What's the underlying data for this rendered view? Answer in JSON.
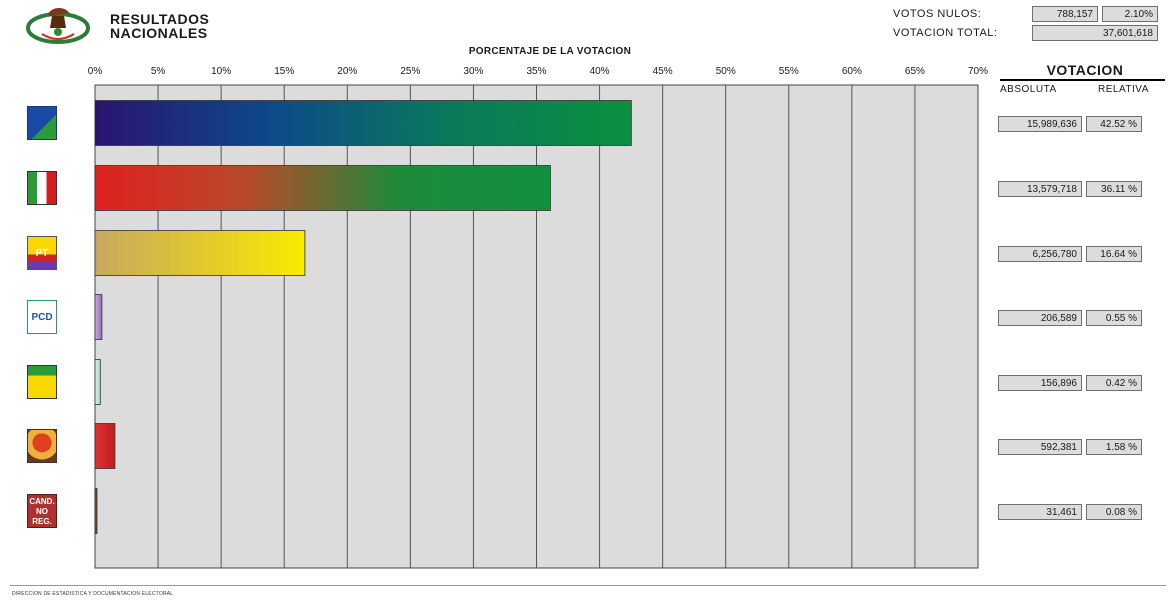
{
  "header": {
    "title_line1": "RESULTADOS",
    "title_line2": "NACIONALES",
    "chart_title": "PORCENTAJE DE LA VOTACION"
  },
  "summary": {
    "votos_nulos_label": "VOTOS NULOS:",
    "votos_nulos_abs": "788,157",
    "votos_nulos_rel": "2.10%",
    "votacion_total_label": "VOTACION TOTAL:",
    "votacion_total": "37,601,618"
  },
  "table": {
    "heading": "VOTACION",
    "col_absoluta": "ABSOLUTA",
    "col_relativa": "RELATIVA",
    "rows": [
      {
        "absoluta": "15,989,636",
        "relativa": "42.52 %"
      },
      {
        "absoluta": "13,579,718",
        "relativa": "36.11 %"
      },
      {
        "absoluta": "6,256,780",
        "relativa": "16.64 %"
      },
      {
        "absoluta": "206,589",
        "relativa": "0.55 %"
      },
      {
        "absoluta": "156,896",
        "relativa": "0.42 %"
      },
      {
        "absoluta": "592,381",
        "relativa": "1.58 %"
      },
      {
        "absoluta": "31,461",
        "relativa": "0.08 %"
      }
    ]
  },
  "logos": [
    {
      "icon": "pan-pvem-logo-icon",
      "text": ""
    },
    {
      "icon": "pri-logo-icon",
      "text": ""
    },
    {
      "icon": "prd-pt-alliance-logo-icon",
      "text": "PT"
    },
    {
      "icon": "pcd-logo-icon",
      "text": "PCD"
    },
    {
      "icon": "parm-logo-icon",
      "text": ""
    },
    {
      "icon": "dsppn-logo-icon",
      "text": ""
    },
    {
      "icon": "cand-no-reg-icon",
      "text": "CAND.\nNO\nREG."
    }
  ],
  "footer": "DIRECCION DE ESTADISTICA Y DOCUMENTACION ELECTORAL",
  "chart_data": {
    "type": "bar",
    "orientation": "horizontal",
    "title": "PORCENTAJE DE LA VOTACION",
    "xlim": [
      0,
      70
    ],
    "x_ticks": [
      "0%",
      "5%",
      "10%",
      "15%",
      "20%",
      "25%",
      "30%",
      "35%",
      "40%",
      "45%",
      "50%",
      "55%",
      "60%",
      "65%",
      "70%"
    ],
    "grid": true,
    "values": [
      42.52,
      36.11,
      16.64,
      0.55,
      0.42,
      1.58,
      0.08
    ],
    "bar_colors": [
      [
        "#2a1470",
        "#0c4a8a",
        "#0a7a5a",
        "#0a9040"
      ],
      [
        "#e02020",
        "#b84a2a",
        "#1e8a3a",
        "#109040"
      ],
      [
        "#c8a860",
        "#e0c830",
        "#f8ec00"
      ],
      [
        "#c8a8e0",
        "#9070b8"
      ],
      [
        "#d8f0e8",
        "#a8d8c8"
      ],
      [
        "#e03030",
        "#c02020"
      ],
      [
        "#8a5a3a",
        "#6a4028"
      ]
    ],
    "plot_background": "#dcdcdc"
  }
}
